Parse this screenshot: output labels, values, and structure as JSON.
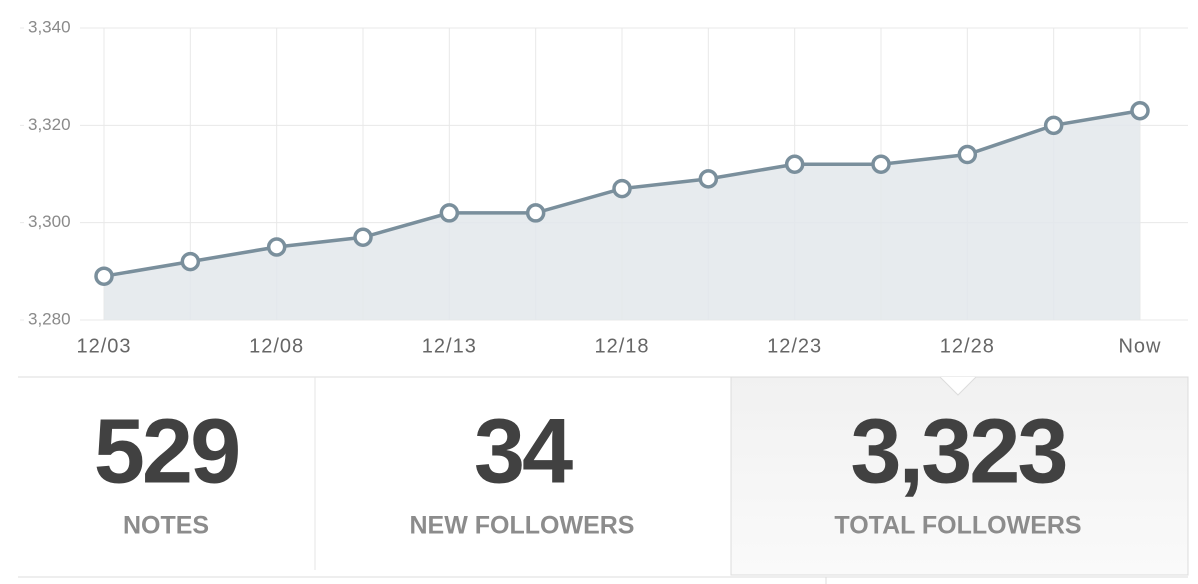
{
  "chart_data": {
    "type": "line",
    "categories": [
      "12/03",
      null,
      "12/08",
      null,
      "12/13",
      null,
      "12/18",
      null,
      "12/23",
      null,
      "12/28",
      null,
      "Now"
    ],
    "values": [
      3289,
      3292,
      3295,
      3297,
      3302,
      3302,
      3307,
      3309,
      3312,
      3312,
      3314,
      3320,
      3323
    ],
    "color": "#7a8f9c",
    "area_color": "#e3e8eb",
    "ylim": [
      3280,
      3340
    ],
    "yticks": [
      {
        "value": 3280,
        "label": "3,280"
      },
      {
        "value": 3300,
        "label": "3,300"
      },
      {
        "value": 3320,
        "label": "3,320"
      },
      {
        "value": 3340,
        "label": "3,340"
      }
    ],
    "grid": true
  },
  "stats": [
    {
      "value": "529",
      "label": "NOTES"
    },
    {
      "value": "34",
      "label": "NEW FOLLOWERS"
    },
    {
      "value": "3,323",
      "label": "TOTAL FOLLOWERS"
    }
  ]
}
